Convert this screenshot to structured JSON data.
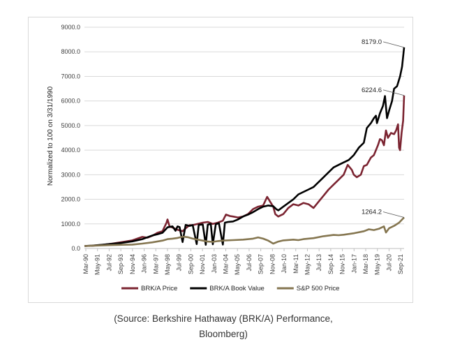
{
  "chart_data": {
    "type": "line",
    "title": "",
    "xlabel": "",
    "ylabel": "Normalized to 100 on 3/31/1990",
    "ylim": [
      0,
      9000
    ],
    "yticks": [
      "0.0",
      "1000.0",
      "2000.0",
      "3000.0",
      "4000.0",
      "5000.0",
      "6000.0",
      "7000.0",
      "8000.0",
      "9000.0"
    ],
    "xlim": [
      1990.25,
      2022.0
    ],
    "xtick_labels": [
      "Mar-90",
      "May-91",
      "Jul-92",
      "Sep-93",
      "Nov-94",
      "Jan-96",
      "Mar-97",
      "May-98",
      "Jul-99",
      "Sep-00",
      "Nov-01",
      "Jan-03",
      "Mar-04",
      "May-05",
      "Jul-06",
      "Sep-07",
      "Nov-08",
      "Jan-10",
      "Mar-11",
      "May-12",
      "Jul-13",
      "Sep-14",
      "Nov-15",
      "Jan-17",
      "Mar-18",
      "May-19",
      "Jul-20",
      "Sep-21"
    ],
    "grid": "horizontal",
    "legend_position": "bottom",
    "series": [
      {
        "name": "BRK/A Price",
        "color": "#7b2431",
        "points": [
          [
            1990.25,
            100
          ],
          [
            1991.0,
            110
          ],
          [
            1992.0,
            145
          ],
          [
            1993.0,
            200
          ],
          [
            1994.0,
            260
          ],
          [
            1995.0,
            330
          ],
          [
            1996.0,
            470
          ],
          [
            1996.5,
            440
          ],
          [
            1997.0,
            520
          ],
          [
            1997.5,
            640
          ],
          [
            1998.0,
            700
          ],
          [
            1998.4,
            1050
          ],
          [
            1998.5,
            1180
          ],
          [
            1998.7,
            900
          ],
          [
            1999.0,
            850
          ],
          [
            1999.5,
            760
          ],
          [
            2000.0,
            700
          ],
          [
            2000.3,
            820
          ],
          [
            2000.7,
            950
          ],
          [
            2001.0,
            950
          ],
          [
            2002.0,
            1050
          ],
          [
            2002.5,
            1080
          ],
          [
            2003.0,
            1000
          ],
          [
            2003.5,
            1050
          ],
          [
            2004.0,
            1130
          ],
          [
            2004.3,
            1380
          ],
          [
            2004.7,
            1320
          ],
          [
            2005.0,
            1300
          ],
          [
            2005.5,
            1260
          ],
          [
            2006.0,
            1300
          ],
          [
            2006.5,
            1400
          ],
          [
            2007.0,
            1600
          ],
          [
            2007.5,
            1700
          ],
          [
            2008.0,
            1750
          ],
          [
            2008.4,
            2100
          ],
          [
            2008.7,
            1900
          ],
          [
            2009.0,
            1700
          ],
          [
            2009.2,
            1400
          ],
          [
            2009.5,
            1300
          ],
          [
            2010.0,
            1400
          ],
          [
            2010.5,
            1650
          ],
          [
            2011.0,
            1800
          ],
          [
            2011.5,
            1750
          ],
          [
            2012.0,
            1850
          ],
          [
            2012.5,
            1800
          ],
          [
            2013.0,
            1650
          ],
          [
            2013.5,
            1900
          ],
          [
            2014.0,
            2150
          ],
          [
            2014.5,
            2400
          ],
          [
            2015.0,
            2600
          ],
          [
            2015.5,
            2800
          ],
          [
            2016.0,
            3000
          ],
          [
            2016.4,
            3400
          ],
          [
            2016.8,
            3200
          ],
          [
            2017.0,
            3000
          ],
          [
            2017.3,
            2900
          ],
          [
            2017.7,
            3000
          ],
          [
            2018.0,
            3350
          ],
          [
            2018.3,
            3400
          ],
          [
            2018.7,
            3700
          ],
          [
            2019.0,
            3800
          ],
          [
            2019.4,
            4200
          ],
          [
            2019.6,
            4450
          ],
          [
            2019.8,
            4400
          ],
          [
            2020.0,
            4200
          ],
          [
            2020.2,
            4800
          ],
          [
            2020.4,
            4500
          ],
          [
            2020.7,
            4700
          ],
          [
            2021.0,
            4650
          ],
          [
            2021.2,
            4800
          ],
          [
            2021.4,
            5050
          ],
          [
            2021.5,
            4100
          ],
          [
            2021.6,
            4000
          ],
          [
            2021.75,
            4700
          ],
          [
            2021.9,
            5200
          ],
          [
            2022.0,
            6224.6
          ]
        ]
      },
      {
        "name": "BRK/A Book Value",
        "color": "#000000",
        "points": [
          [
            1990.25,
            100
          ],
          [
            1991.0,
            115
          ],
          [
            1992.0,
            150
          ],
          [
            1993.0,
            190
          ],
          [
            1994.0,
            230
          ],
          [
            1995.0,
            290
          ],
          [
            1996.0,
            380
          ],
          [
            1997.0,
            530
          ],
          [
            1997.5,
            580
          ],
          [
            1998.0,
            640
          ],
          [
            1998.5,
            860
          ],
          [
            1999.0,
            900
          ],
          [
            1999.3,
            720
          ],
          [
            1999.5,
            900
          ],
          [
            1999.7,
            870
          ],
          [
            2000.0,
            260
          ],
          [
            2000.3,
            960
          ],
          [
            2000.7,
            920
          ],
          [
            2001.0,
            950
          ],
          [
            2001.4,
            180
          ],
          [
            2001.6,
            960
          ],
          [
            2002.0,
            980
          ],
          [
            2002.3,
            150
          ],
          [
            2002.5,
            970
          ],
          [
            2002.8,
            1000
          ],
          [
            2003.0,
            170
          ],
          [
            2003.3,
            990
          ],
          [
            2003.6,
            1030
          ],
          [
            2004.0,
            160
          ],
          [
            2004.2,
            1050
          ],
          [
            2004.5,
            1080
          ],
          [
            2005.0,
            1100
          ],
          [
            2005.5,
            1180
          ],
          [
            2006.0,
            1300
          ],
          [
            2006.5,
            1380
          ],
          [
            2007.0,
            1480
          ],
          [
            2007.5,
            1600
          ],
          [
            2008.0,
            1700
          ],
          [
            2008.5,
            1750
          ],
          [
            2009.0,
            1720
          ],
          [
            2009.3,
            1600
          ],
          [
            2009.5,
            1550
          ],
          [
            2010.0,
            1700
          ],
          [
            2010.5,
            1850
          ],
          [
            2011.0,
            2000
          ],
          [
            2011.5,
            2200
          ],
          [
            2012.0,
            2300
          ],
          [
            2012.5,
            2400
          ],
          [
            2013.0,
            2500
          ],
          [
            2013.5,
            2700
          ],
          [
            2014.0,
            2900
          ],
          [
            2014.5,
            3100
          ],
          [
            2015.0,
            3300
          ],
          [
            2015.5,
            3400
          ],
          [
            2016.0,
            3500
          ],
          [
            2016.5,
            3600
          ],
          [
            2017.0,
            3800
          ],
          [
            2017.5,
            4100
          ],
          [
            2018.0,
            4300
          ],
          [
            2018.3,
            4900
          ],
          [
            2018.5,
            5000
          ],
          [
            2018.7,
            5100
          ],
          [
            2019.0,
            5300
          ],
          [
            2019.2,
            5400
          ],
          [
            2019.3,
            5100
          ],
          [
            2019.6,
            5500
          ],
          [
            2019.9,
            5800
          ],
          [
            2020.1,
            6200
          ],
          [
            2020.3,
            5300
          ],
          [
            2020.5,
            5600
          ],
          [
            2020.8,
            6000
          ],
          [
            2021.0,
            6500
          ],
          [
            2021.3,
            6600
          ],
          [
            2021.6,
            7000
          ],
          [
            2021.8,
            7400
          ],
          [
            2022.0,
            8179.0
          ]
        ]
      },
      {
        "name": "S&P 500 Price",
        "color": "#857650",
        "points": [
          [
            1990.25,
            100
          ],
          [
            1991.0,
            110
          ],
          [
            1992.0,
            125
          ],
          [
            1993.0,
            140
          ],
          [
            1994.0,
            150
          ],
          [
            1995.0,
            160
          ],
          [
            1996.0,
            200
          ],
          [
            1997.0,
            250
          ],
          [
            1998.0,
            320
          ],
          [
            1998.5,
            380
          ],
          [
            1999.0,
            400
          ],
          [
            1999.5,
            430
          ],
          [
            2000.0,
            480
          ],
          [
            2000.5,
            460
          ],
          [
            2001.0,
            400
          ],
          [
            2001.5,
            360
          ],
          [
            2002.0,
            320
          ],
          [
            2002.5,
            280
          ],
          [
            2003.0,
            270
          ],
          [
            2003.5,
            300
          ],
          [
            2004.0,
            320
          ],
          [
            2005.0,
            340
          ],
          [
            2006.0,
            360
          ],
          [
            2007.0,
            400
          ],
          [
            2007.5,
            450
          ],
          [
            2008.0,
            400
          ],
          [
            2008.5,
            320
          ],
          [
            2009.0,
            200
          ],
          [
            2009.5,
            280
          ],
          [
            2010.0,
            330
          ],
          [
            2011.0,
            360
          ],
          [
            2011.5,
            340
          ],
          [
            2012.0,
            380
          ],
          [
            2013.0,
            420
          ],
          [
            2014.0,
            500
          ],
          [
            2015.0,
            550
          ],
          [
            2015.5,
            540
          ],
          [
            2016.0,
            560
          ],
          [
            2017.0,
            620
          ],
          [
            2018.0,
            700
          ],
          [
            2018.5,
            780
          ],
          [
            2019.0,
            750
          ],
          [
            2019.5,
            800
          ],
          [
            2020.0,
            900
          ],
          [
            2020.2,
            650
          ],
          [
            2020.5,
            820
          ],
          [
            2021.0,
            920
          ],
          [
            2021.5,
            1050
          ],
          [
            2022.0,
            1264.2
          ]
        ]
      }
    ],
    "annotations": [
      {
        "label": "8179.0",
        "series": 1
      },
      {
        "label": "6224.6",
        "series": 0
      },
      {
        "label": "1264.2",
        "series": 2
      }
    ]
  },
  "caption": {
    "line1": "(Source: Berkshire Hathaway (BRK/A) Performance,",
    "line2": "Bloomberg)"
  }
}
